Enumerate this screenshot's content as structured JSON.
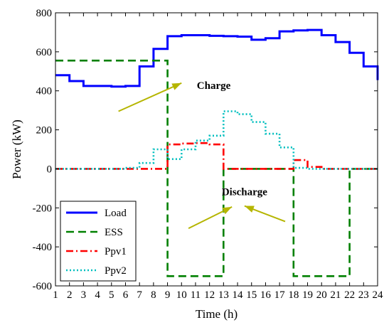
{
  "chart_data": {
    "type": "line",
    "xlabel": "Time (h)",
    "ylabel": "Power (kW)",
    "xlim": [
      1,
      24
    ],
    "ylim": [
      -600,
      800
    ],
    "x_ticks": [
      1,
      2,
      3,
      4,
      5,
      6,
      7,
      8,
      9,
      10,
      11,
      12,
      13,
      14,
      15,
      16,
      17,
      18,
      19,
      20,
      21,
      22,
      23,
      24
    ],
    "y_ticks": [
      -600,
      -400,
      -200,
      0,
      200,
      400,
      600,
      800
    ],
    "step": true,
    "grid": false,
    "legend_position": "bottom-left",
    "series": [
      {
        "name": "Load",
        "color": "#0000ff",
        "style": "solid",
        "x": [
          1,
          2,
          3,
          4,
          5,
          6,
          7,
          8,
          9,
          10,
          11,
          12,
          13,
          14,
          15,
          16,
          17,
          18,
          19,
          20,
          21,
          22,
          23,
          24
        ],
        "values": [
          480,
          450,
          425,
          425,
          422,
          425,
          525,
          615,
          680,
          685,
          685,
          682,
          680,
          678,
          662,
          670,
          705,
          710,
          712,
          685,
          650,
          595,
          525,
          455
        ]
      },
      {
        "name": "ESS",
        "color": "#008000",
        "style": "dashed",
        "x": [
          1,
          2,
          3,
          4,
          5,
          6,
          7,
          8,
          9,
          10,
          11,
          12,
          13,
          14,
          15,
          16,
          17,
          18,
          19,
          20,
          21,
          22,
          23,
          24
        ],
        "values": [
          555,
          555,
          555,
          555,
          555,
          555,
          555,
          555,
          -550,
          -550,
          -550,
          -550,
          0,
          0,
          0,
          0,
          0,
          -550,
          -550,
          -550,
          -550,
          0,
          0,
          0
        ]
      },
      {
        "name": "Ppv1",
        "color": "#ff0000",
        "style": "dashdot",
        "x": [
          1,
          2,
          3,
          4,
          5,
          6,
          7,
          8,
          9,
          10,
          11,
          12,
          13,
          14,
          15,
          16,
          17,
          18,
          19,
          20,
          21,
          22,
          23,
          24
        ],
        "values": [
          0,
          0,
          0,
          0,
          0,
          0,
          0,
          0,
          125,
          130,
          132,
          125,
          0,
          0,
          0,
          0,
          0,
          45,
          10,
          0,
          0,
          0,
          0,
          0
        ]
      },
      {
        "name": "Ppv2",
        "color": "#00bfbf",
        "style": "dotted",
        "x": [
          1,
          2,
          3,
          4,
          5,
          6,
          7,
          8,
          9,
          10,
          11,
          12,
          13,
          14,
          15,
          16,
          17,
          18,
          19,
          20,
          21,
          22,
          23,
          24
        ],
        "values": [
          0,
          0,
          0,
          0,
          0,
          5,
          30,
          100,
          50,
          100,
          145,
          170,
          295,
          280,
          240,
          180,
          110,
          5,
          0,
          0,
          0,
          0,
          0,
          0
        ]
      }
    ],
    "annotations": [
      {
        "text": "Charge",
        "x": 12.3,
        "y": 410
      },
      {
        "text": "Discharge",
        "x": 14.5,
        "y": -135
      }
    ],
    "arrows": [
      {
        "from": [
          5.5,
          295
        ],
        "to": [
          10,
          440
        ]
      },
      {
        "from": [
          10.5,
          -305
        ],
        "to": [
          13.6,
          -195
        ]
      },
      {
        "from": [
          17.4,
          -270
        ],
        "to": [
          14.5,
          -190
        ]
      }
    ],
    "arrow_color": "#b5b500"
  }
}
